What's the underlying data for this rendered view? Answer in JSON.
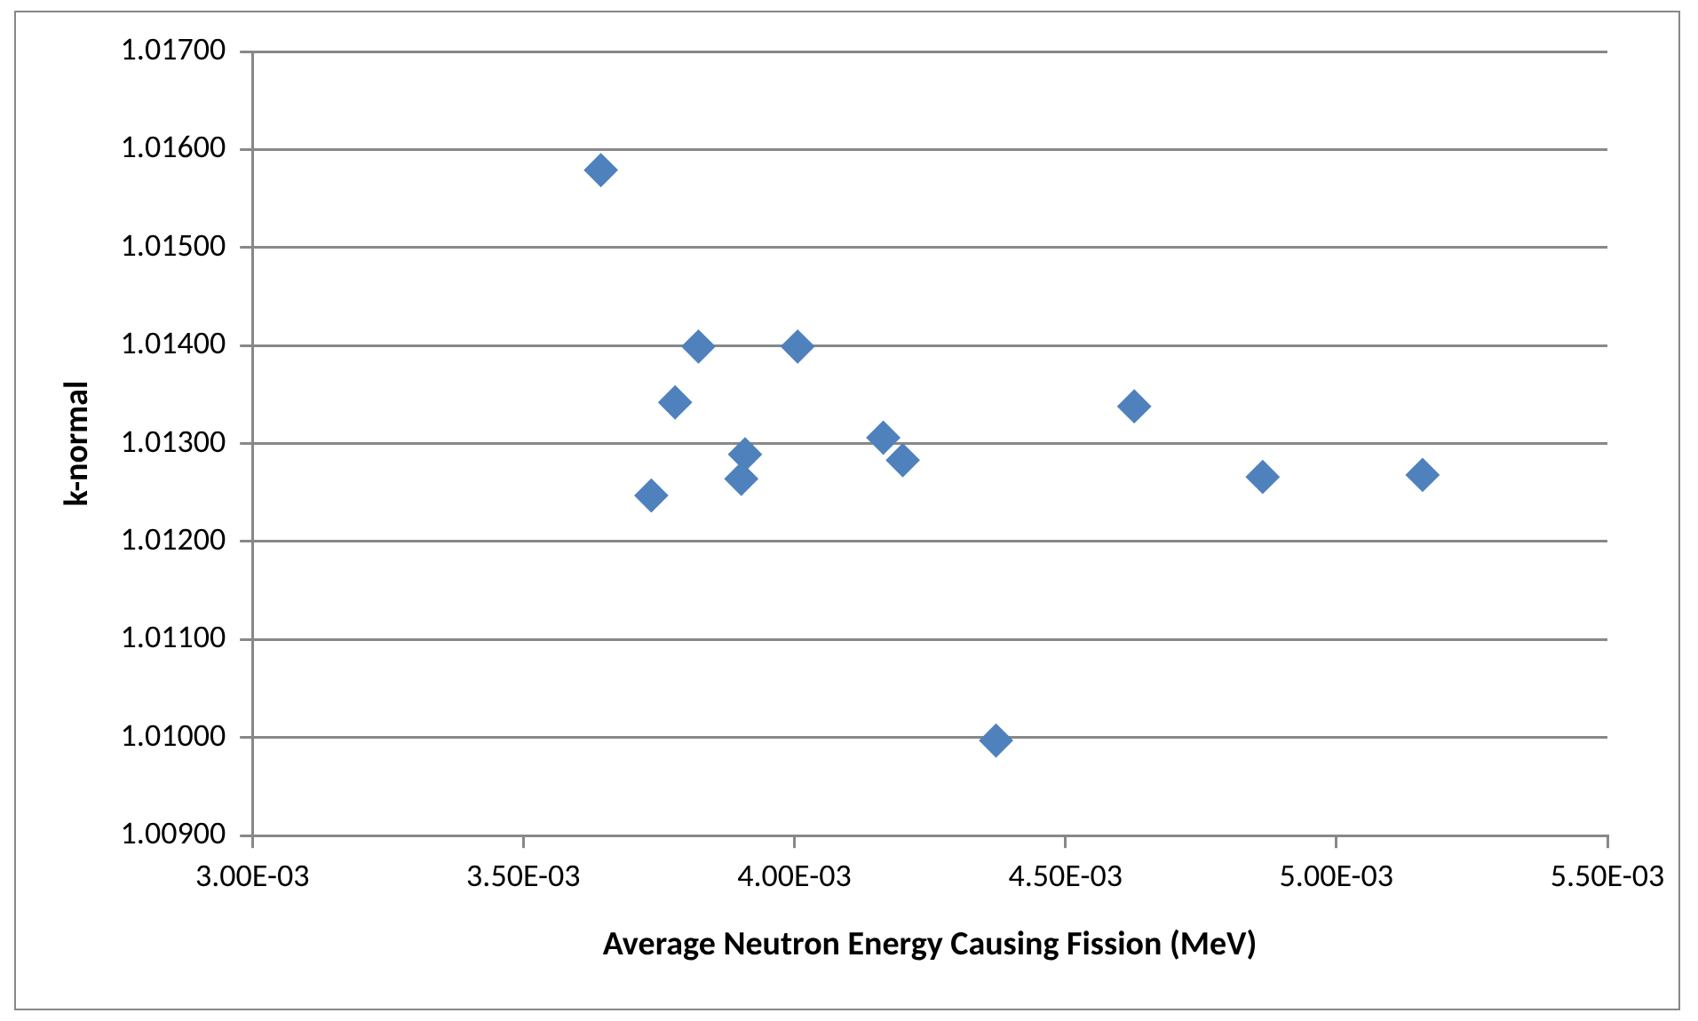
{
  "chart_data": {
    "type": "scatter",
    "xlabel": "Average Neutron Energy Causing Fission (MeV)",
    "ylabel": "k-normal",
    "x": [
      0.003643,
      0.003823,
      0.004006,
      0.00378,
      0.003736,
      0.003909,
      0.003902,
      0.004164,
      0.0042,
      0.004372,
      0.004627,
      0.004864,
      0.005159
    ],
    "series": [
      {
        "color": "#4f81bd",
        "values": [
          1.01579,
          1.01399,
          1.01399,
          1.01342,
          1.01247,
          1.01289,
          1.01264,
          1.01306,
          1.01283,
          1.00997,
          1.01338,
          1.01266,
          1.01268
        ]
      }
    ],
    "xlim": [
      0.003,
      0.0055
    ],
    "xticks": [
      {
        "value": 0.003,
        "label": "3.00E-03"
      },
      {
        "value": 0.0035,
        "label": "3.50E-03"
      },
      {
        "value": 0.004,
        "label": "4.00E-03"
      },
      {
        "value": 0.0045,
        "label": "4.50E-03"
      },
      {
        "value": 0.005,
        "label": "5.00E-03"
      },
      {
        "value": 0.0055,
        "label": "5.50E-03"
      }
    ],
    "ylim": [
      1.009,
      1.017
    ],
    "yticks": [
      {
        "value": 1.009,
        "label": "1.00900"
      },
      {
        "value": 1.01,
        "label": "1.01000"
      },
      {
        "value": 1.011,
        "label": "1.01100"
      },
      {
        "value": 1.012,
        "label": "1.01200"
      },
      {
        "value": 1.013,
        "label": "1.01300"
      },
      {
        "value": 1.014,
        "label": "1.01400"
      },
      {
        "value": 1.015,
        "label": "1.01500"
      },
      {
        "value": 1.016,
        "label": "1.01600"
      },
      {
        "value": 1.017,
        "label": "1.01700"
      }
    ],
    "grid": "y",
    "legend": false,
    "marker": "diamond"
  }
}
